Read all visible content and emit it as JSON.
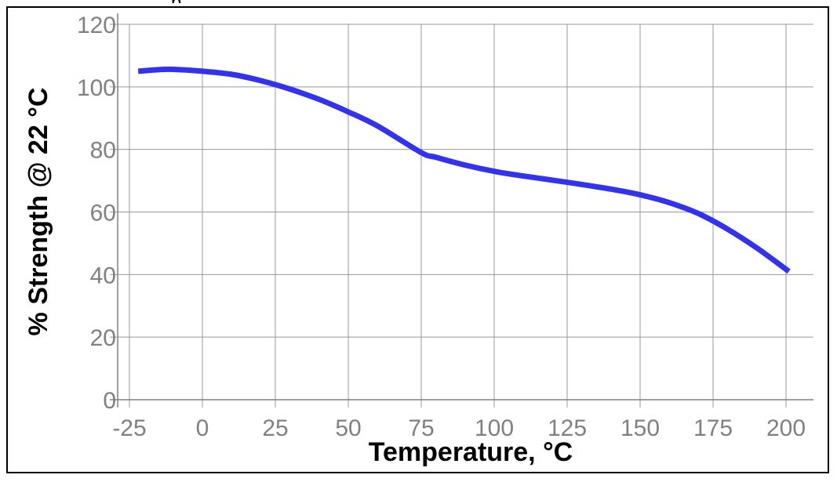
{
  "chart_data": {
    "type": "line",
    "title": "",
    "xlabel": "Temperature, °C",
    "ylabel": "% Strength @ 22 °C",
    "xlim": [
      -25,
      210
    ],
    "ylim": [
      0,
      120
    ],
    "x_ticks": [
      -25,
      0,
      25,
      50,
      75,
      100,
      125,
      150,
      175,
      200
    ],
    "y_ticks": [
      0,
      20,
      40,
      60,
      80,
      100,
      120
    ],
    "grid": true,
    "legend": "none",
    "series": [
      {
        "color": "#3333ee",
        "x": [
          -22,
          -15,
          -10,
          0,
          10,
          20,
          30,
          40,
          50,
          60,
          75,
          80,
          90,
          100,
          110,
          125,
          140,
          150,
          160,
          170,
          180,
          190,
          201
        ],
        "y": [
          105,
          105.5,
          105.6,
          105,
          104,
          102,
          99.3,
          96,
          92,
          87.5,
          79,
          77.5,
          75,
          73,
          71.5,
          69.5,
          67.3,
          65.5,
          63,
          59.5,
          54.5,
          48.5,
          41
        ]
      }
    ]
  }
}
